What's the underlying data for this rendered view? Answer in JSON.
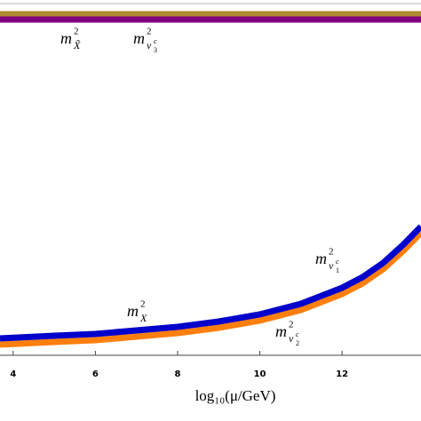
{
  "chart_data": {
    "type": "line",
    "x_label": "log₁₀(μ/GeV)",
    "x": [
      3.68,
      5,
      6,
      7,
      8,
      9,
      10,
      11,
      12,
      12.5,
      13,
      13.5,
      13.92
    ],
    "xlim": [
      3.68,
      13.92
    ],
    "xticks": [
      4,
      6,
      8,
      10,
      12
    ],
    "ylim": [
      0,
      100
    ],
    "series": [
      {
        "color": "#ff7f0e",
        "values": [
          3,
          3.75,
          4.25,
          5.25,
          6.25,
          7.75,
          9.75,
          12.75,
          17.25,
          20.25,
          24.25,
          29.5,
          34.5
        ]
      },
      {
        "color": "#0000cc",
        "values": [
          4.75,
          5.5,
          6,
          7,
          8,
          9.5,
          11.5,
          14.5,
          19,
          22,
          26,
          31.25,
          36.25
        ]
      },
      {
        "color": "#b08a2e",
        "values": [
          96,
          96,
          96,
          96,
          96,
          96,
          96,
          96,
          96,
          96,
          96,
          96,
          96
        ]
      },
      {
        "color": "#800080",
        "values": [
          94.5,
          94.5,
          94.5,
          94.5,
          94.5,
          94.5,
          94.5,
          94.5,
          94.5,
          94.5,
          94.5,
          94.5,
          94.5
        ]
      }
    ],
    "annotations": [
      {
        "base": "m",
        "sup": "2",
        "sub": "X̃"
      },
      {
        "base": "m",
        "sup": "2",
        "sub": "ν",
        "sub_sub": "3",
        "sub_sup": "c"
      },
      {
        "base": "m",
        "sup": "2",
        "sub": "X"
      },
      {
        "base": "m",
        "sup": "2",
        "sub": "ν",
        "sub_sub": "1",
        "sub_sup": "c"
      },
      {
        "base": "m",
        "sup": "2",
        "sub": "ν",
        "sub_sub": "2",
        "sub_sup": "c"
      }
    ]
  }
}
